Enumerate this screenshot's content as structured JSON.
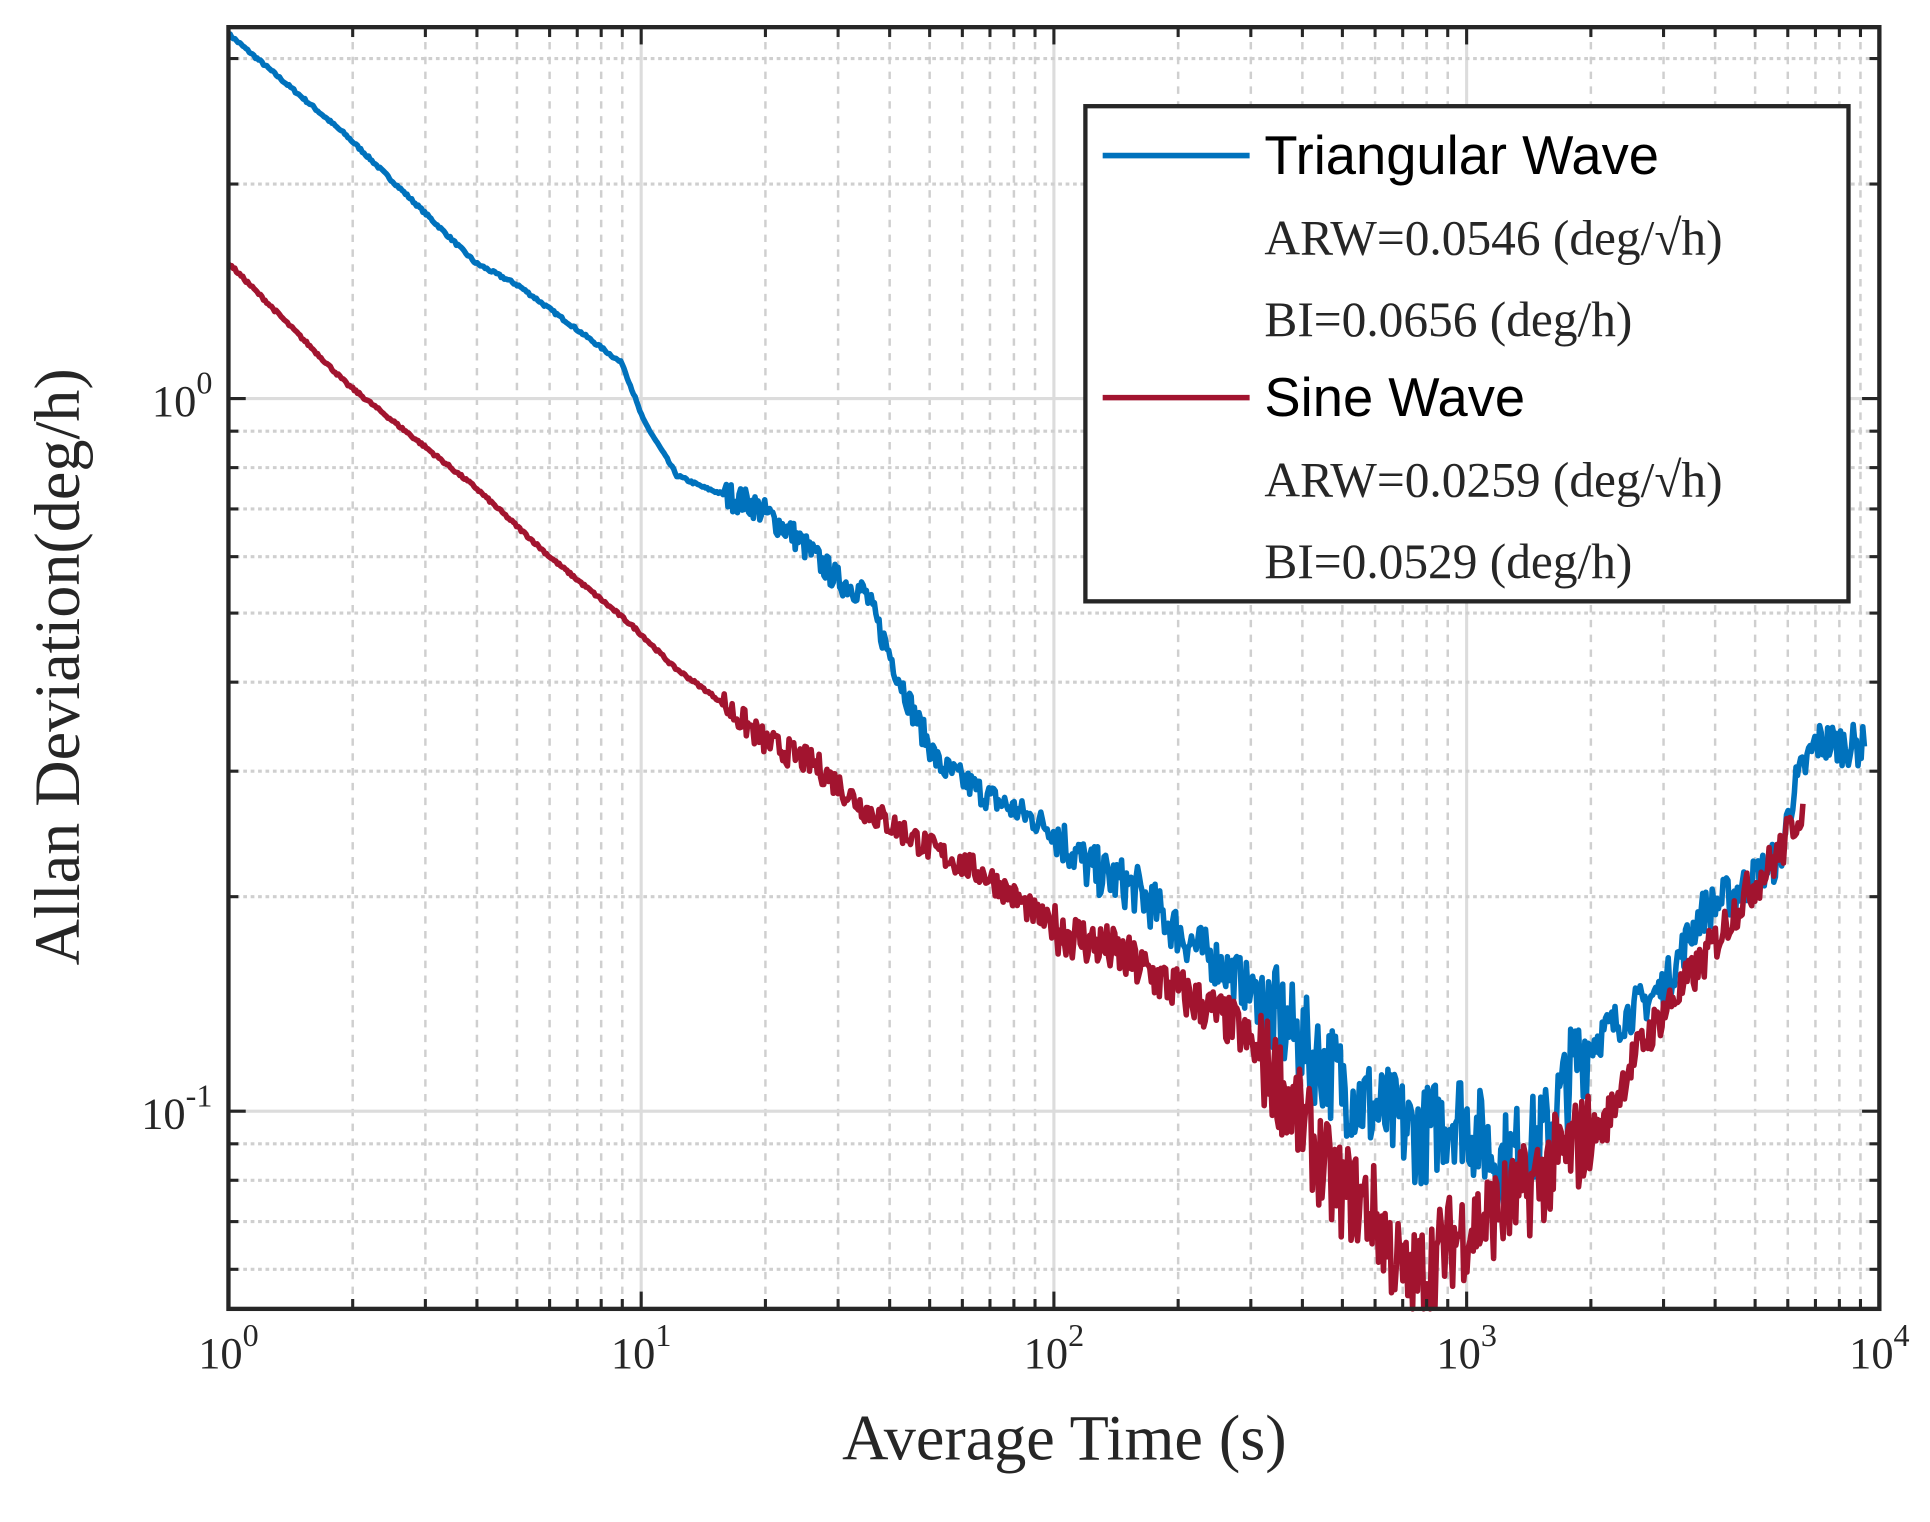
{
  "chart_data": {
    "type": "line",
    "xscale": "log",
    "yscale": "log",
    "xlabel": "Average Time (s)",
    "ylabel": "Allan Deviation(deg/h)",
    "xlim": [
      1,
      10000
    ],
    "ylim": [
      0.0528,
      3.32
    ],
    "grid": true,
    "legend_position": "top-right",
    "x_ticks": [
      {
        "value": 1,
        "base": "10",
        "exp": "0"
      },
      {
        "value": 10,
        "base": "10",
        "exp": "1"
      },
      {
        "value": 100,
        "base": "10",
        "exp": "2"
      },
      {
        "value": 1000,
        "base": "10",
        "exp": "3"
      },
      {
        "value": 10000,
        "base": "10",
        "exp": "4"
      }
    ],
    "y_ticks": [
      {
        "value": 1,
        "base": "10",
        "exp": "0"
      },
      {
        "value": 0.1,
        "base": "10",
        "exp": "-1"
      }
    ],
    "legend": [
      {
        "type": "series",
        "label": "Triangular Wave",
        "series": 0
      },
      {
        "type": "note",
        "label": "ARW=0.0546 (deg/√h)"
      },
      {
        "type": "note",
        "label": "BI=0.0656 (deg/h)"
      },
      {
        "type": "series",
        "label": "Sine Wave",
        "series": 1
      },
      {
        "type": "note",
        "label": "ARW=0.0259 (deg/√h)"
      },
      {
        "type": "note",
        "label": "BI=0.0529 (deg/h)"
      }
    ],
    "series": [
      {
        "name": "Triangular Wave",
        "color": "#0072BD",
        "x": [
          1,
          1.93,
          3.97,
          5.05,
          9.0,
          10.1,
          12.2,
          14.2,
          18.7,
          23,
          30,
          34.8,
          45.9,
          52.7,
          69,
          98,
          121,
          158,
          208,
          275,
          388,
          550,
          776,
          950,
          1210,
          1540,
          1900,
          2500,
          3000,
          3700,
          4610,
          5750,
          6170,
          7040,
          9200
        ],
        "y": [
          3.25,
          2.34,
          1.55,
          1.44,
          1.12,
          0.935,
          0.78,
          0.75,
          0.71,
          0.65,
          0.556,
          0.535,
          0.36,
          0.306,
          0.277,
          0.25,
          0.22,
          0.205,
          0.175,
          0.155,
          0.127,
          0.104,
          0.092,
          0.1,
          0.085,
          0.092,
          0.122,
          0.138,
          0.149,
          0.19,
          0.205,
          0.227,
          0.28,
          0.33,
          0.325
        ]
      },
      {
        "name": "Sine Wave",
        "color": "#A2142F",
        "x": [
          1,
          1.93,
          3.97,
          6.0,
          8.76,
          9.7,
          12,
          15.2,
          20,
          26.5,
          34.8,
          52.7,
          69,
          98,
          138,
          195,
          275,
          360,
          475,
          590,
          720,
          950,
          1350,
          1650,
          2170,
          2500,
          3000,
          3700,
          4610,
          5750,
          6530
        ],
        "y": [
          1.55,
          1.05,
          0.75,
          0.6,
          0.5,
          0.475,
          0.42,
          0.38,
          0.33,
          0.306,
          0.266,
          0.23,
          0.214,
          0.182,
          0.168,
          0.149,
          0.132,
          0.108,
          0.079,
          0.073,
          0.057,
          0.067,
          0.076,
          0.085,
          0.096,
          0.117,
          0.138,
          0.161,
          0.197,
          0.231,
          0.27
        ]
      }
    ]
  }
}
